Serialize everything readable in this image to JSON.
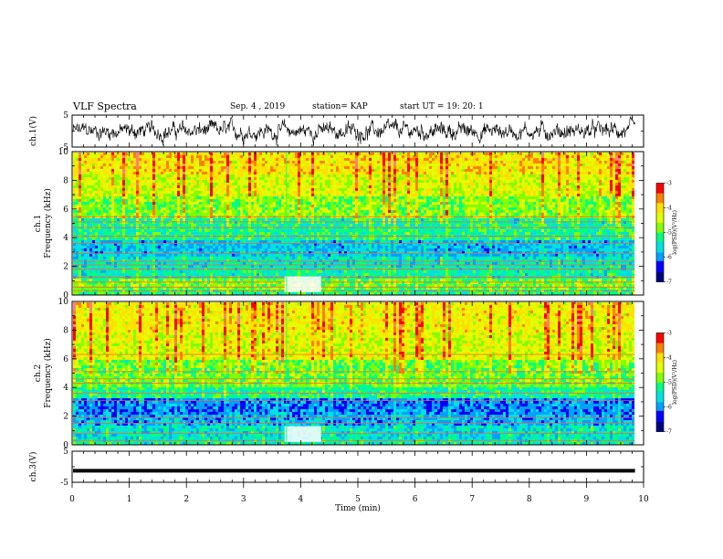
{
  "header": {
    "title": "VLF Spectra",
    "date": "Sep. 4 , 2019",
    "station": "station= KAP",
    "start": "start UT = 19: 20: 1"
  },
  "colors": {
    "spectrum_scale": [
      "#000080",
      "#0000ff",
      "#00a0ff",
      "#00e0e0",
      "#00ff80",
      "#80ff00",
      "#e0ff00",
      "#ffe000",
      "#ff8000",
      "#ff0000",
      "#ff8080",
      "#ffffff"
    ],
    "trace": "#000000"
  },
  "chart_data": [
    {
      "type": "line",
      "panel": "ch1-waveform",
      "ylabel": "ch.1(V)",
      "ylim": [
        -5,
        5
      ],
      "yticks": [
        "5",
        "-5"
      ],
      "xlim": [
        0,
        10
      ],
      "x_range_data": [
        0,
        9.85
      ],
      "series": [
        {
          "values_description_mean": 0,
          "amplitude_typical": 2.5
        }
      ]
    },
    {
      "type": "heatmap",
      "panel": "ch1-spectrogram",
      "ylabel": "Frequency (kHz)",
      "ylabel_top": "ch.1",
      "ylim": [
        0,
        10
      ],
      "yticks": [
        "0",
        "2",
        "4",
        "6",
        "8",
        "10"
      ],
      "xlim": [
        0,
        10
      ],
      "x_range_data": [
        0,
        9.85
      ],
      "colorbar": {
        "label": "log(PSD)(V²/Hz)",
        "ticks": [
          "-3",
          "-4",
          "-5",
          "-6",
          "-7"
        ],
        "range": [
          -7,
          -3
        ]
      },
      "band_levels": [
        {
          "f": [
            0,
            0.5
          ],
          "level": -5.2
        },
        {
          "f": [
            0.5,
            1.2
          ],
          "level": -4.9
        },
        {
          "f": [
            1.2,
            2.0
          ],
          "level": -5.4
        },
        {
          "f": [
            2.0,
            2.8
          ],
          "level": -5.5
        },
        {
          "f": [
            2.8,
            4.0
          ],
          "level": -5.8
        },
        {
          "f": [
            4.0,
            5.5
          ],
          "level": -5.3
        },
        {
          "f": [
            5.5,
            7.0
          ],
          "level": -4.8
        },
        {
          "f": [
            7.0,
            8.5
          ],
          "level": -4.4
        },
        {
          "f": [
            8.5,
            10
          ],
          "level": -4.1
        }
      ],
      "lines_khz": [
        0.3,
        0.55,
        0.9,
        1.25,
        1.8,
        2.1,
        2.35,
        2.9,
        3.6,
        4.1,
        4.7,
        5.1,
        5.45
      ],
      "event_time_min": 3.75
    },
    {
      "type": "heatmap",
      "panel": "ch2-spectrogram",
      "ylabel": "Frequency (kHz)",
      "ylabel_top": "ch.2",
      "ylim": [
        0,
        10
      ],
      "yticks": [
        "0",
        "2",
        "4",
        "6",
        "8",
        "10"
      ],
      "xlim": [
        0,
        10
      ],
      "x_range_data": [
        0,
        9.85
      ],
      "colorbar": {
        "label": "log(PSD)(V²/Hz)",
        "ticks": [
          "-3",
          "-4",
          "-5",
          "-6",
          "-7"
        ],
        "range": [
          -7,
          -3
        ]
      },
      "band_levels": [
        {
          "f": [
            0,
            0.5
          ],
          "level": -5.4
        },
        {
          "f": [
            0.5,
            1.5
          ],
          "level": -5.6
        },
        {
          "f": [
            1.5,
            2.2
          ],
          "level": -5.9
        },
        {
          "f": [
            2.2,
            3.3
          ],
          "level": -6.1
        },
        {
          "f": [
            3.3,
            4.2
          ],
          "level": -5.3
        },
        {
          "f": [
            4.2,
            6.0
          ],
          "level": -4.9
        },
        {
          "f": [
            6.0,
            8.0
          ],
          "level": -4.4
        },
        {
          "f": [
            8.0,
            10
          ],
          "level": -4.2
        }
      ],
      "lines_khz": [
        0.3,
        0.8,
        1.5,
        1.9,
        3.1,
        3.6,
        4.3,
        4.6,
        5.1,
        6.3
      ],
      "event_time_min": 3.75
    },
    {
      "type": "line",
      "panel": "ch3-waveform",
      "ylabel": "ch.3(V)",
      "ylim": [
        -5,
        5
      ],
      "yticks": [
        "5",
        "-5"
      ],
      "xlim": [
        0,
        10
      ],
      "x_range_data": [
        0,
        9.85
      ],
      "series": [
        {
          "constant_value": -1.3
        }
      ]
    }
  ],
  "xaxis": {
    "label": "Time (min)",
    "ticks": [
      "0",
      "1",
      "2",
      "3",
      "4",
      "5",
      "6",
      "7",
      "8",
      "9",
      "10"
    ]
  }
}
